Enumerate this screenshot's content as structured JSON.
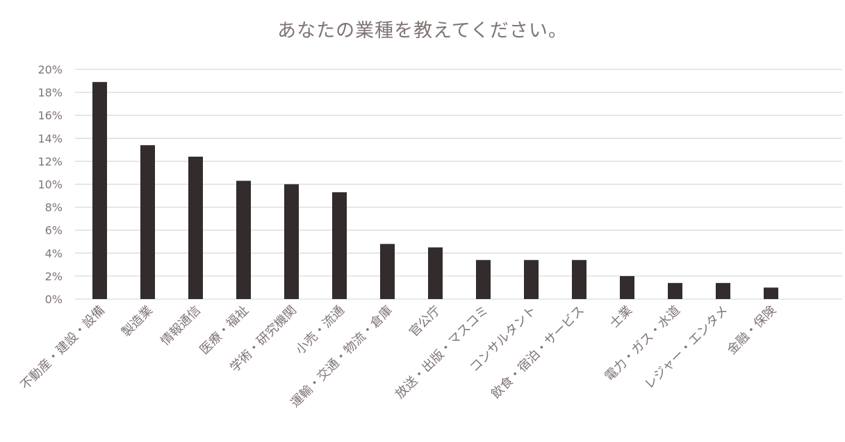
{
  "chart_data": {
    "type": "bar",
    "title": "あなたの業種を教えてください。",
    "xlabel": "",
    "ylabel": "",
    "ylim": [
      0,
      20
    ],
    "yticks": [
      "0%",
      "2%",
      "4%",
      "6%",
      "8%",
      "10%",
      "12%",
      "14%",
      "16%",
      "18%",
      "20%"
    ],
    "grid": true,
    "unit": "%",
    "bar_color": "#322c2c",
    "categories": [
      "不動産・建設・設備",
      "製造業",
      "情報通信",
      "医療・福祉",
      "学術・研究機関",
      "小売・流通",
      "運輸・交通・物流・倉庫",
      "官公庁",
      "放送・出版・マスコミ",
      "コンサルタント",
      "飲食・宿泊・サービス",
      "士業",
      "電力・ガス・水道",
      "レジャー・エンタメ",
      "金融・保険"
    ],
    "values": [
      18.9,
      13.4,
      12.4,
      10.3,
      10.0,
      9.3,
      4.8,
      4.5,
      3.4,
      3.4,
      3.4,
      2.0,
      1.4,
      1.4,
      1.0
    ]
  }
}
